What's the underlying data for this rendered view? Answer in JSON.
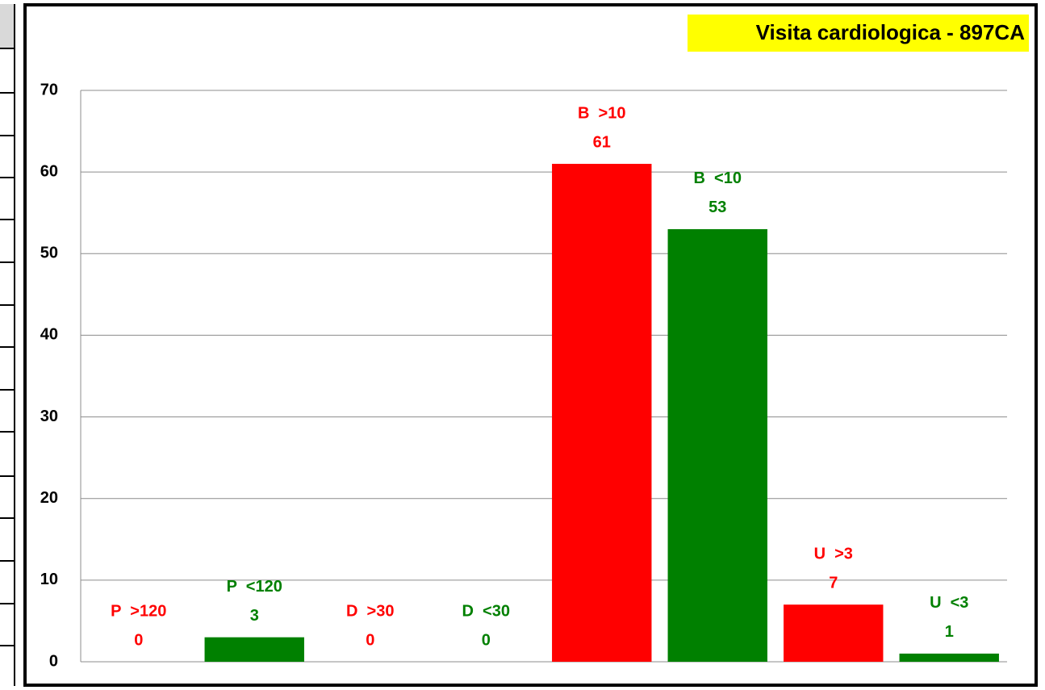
{
  "chart_data": {
    "type": "bar",
    "title": "Visita cardiologica - 897CA",
    "categories": [
      "P  >120",
      "P  <120",
      "D  >30",
      "D  <30",
      "B  >10",
      "B  <10",
      "U  >3",
      "U  <3"
    ],
    "values": [
      0,
      3,
      0,
      0,
      61,
      53,
      7,
      1
    ],
    "colors": [
      "#ff0000",
      "#008000",
      "#ff0000",
      "#008000",
      "#ff0000",
      "#008000",
      "#ff0000",
      "#008000"
    ],
    "ylim": [
      0,
      70
    ],
    "yticks": [
      0,
      10,
      20,
      30,
      40,
      50,
      60,
      70
    ],
    "grid": true
  }
}
